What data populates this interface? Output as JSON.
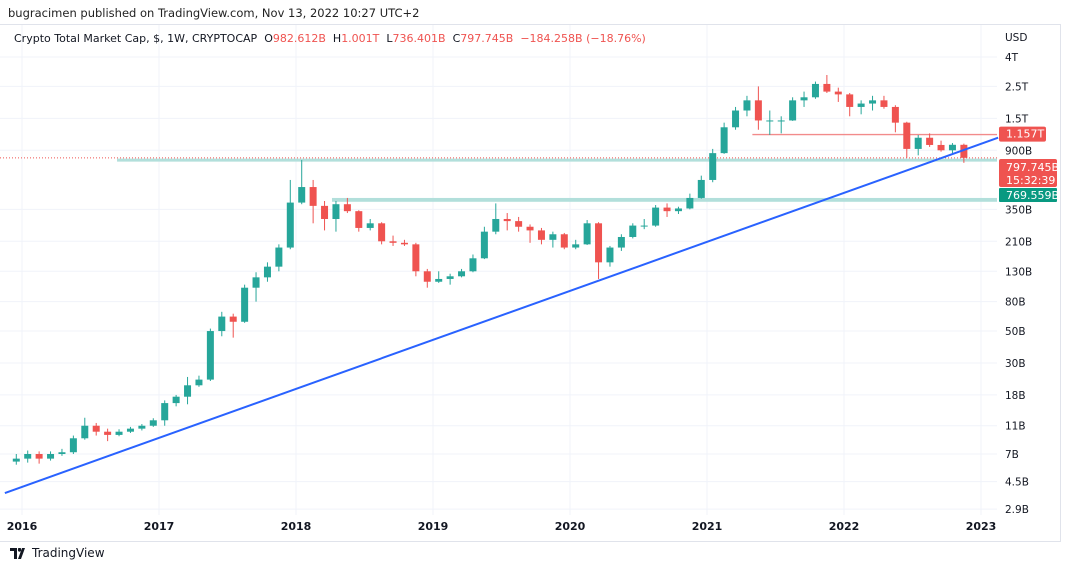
{
  "publisher_line": "bugracimen published on TradingView.com, Nov 13, 2022 10:27 UTC+2",
  "legend": {
    "symbol": "Crypto Total Market Cap, $, 1W, CRYPTOCAP",
    "o_label": "O",
    "o": "982.612B",
    "h_label": "H",
    "h": "1.001T",
    "l_label": "L",
    "l": "736.401B",
    "c_label": "C",
    "c": "797.745B",
    "change": "−184.258B (−18.76%)"
  },
  "logo_text": "TradingView",
  "colors": {
    "up": "#26a69a",
    "down": "#ef5350",
    "trendline": "#2962ff",
    "band": "#b2dfdb",
    "grid": "#f0f3fa"
  },
  "chart_data": {
    "type": "candlestick",
    "scale": "log",
    "currency": "USD",
    "unit_note": "values in billions USD",
    "ylim": [
      2.9,
      4000
    ],
    "y_ticks": [
      {
        "v": 4000,
        "label": "4T"
      },
      {
        "v": 2500,
        "label": "2.5T"
      },
      {
        "v": 1500,
        "label": "1.5T"
      },
      {
        "v": 900,
        "label": "900B"
      },
      {
        "v": 350,
        "label": "350B"
      },
      {
        "v": 210,
        "label": "210B"
      },
      {
        "v": 130,
        "label": "130B"
      },
      {
        "v": 80,
        "label": "80B"
      },
      {
        "v": 50,
        "label": "50B"
      },
      {
        "v": 30,
        "label": "30B"
      },
      {
        "v": 18,
        "label": "18B"
      },
      {
        "v": 11,
        "label": "11B"
      },
      {
        "v": 7,
        "label": "7B"
      },
      {
        "v": 4.5,
        "label": "4.5B"
      },
      {
        "v": 2.9,
        "label": "2.9B"
      }
    ],
    "x_ticks": [
      "2016",
      "2017",
      "2018",
      "2019",
      "2020",
      "2021",
      "2022",
      "2023"
    ],
    "xlim": [
      "2015-11",
      "2023-02"
    ],
    "grid": true,
    "candles": [
      [
        "2015-12",
        6.2,
        7.0,
        5.9,
        6.5
      ],
      [
        "2016-01",
        6.5,
        7.4,
        6.1,
        7.0
      ],
      [
        "2016-02",
        7.0,
        7.3,
        6.0,
        6.5
      ],
      [
        "2016-03",
        6.5,
        7.3,
        6.3,
        7.0
      ],
      [
        "2016-04",
        7.0,
        7.6,
        6.8,
        7.2
      ],
      [
        "2016-05",
        7.2,
        9.4,
        7.0,
        9.0
      ],
      [
        "2016-06",
        9.0,
        12.5,
        8.8,
        11.0
      ],
      [
        "2016-07",
        11.0,
        11.5,
        9.4,
        10.0
      ],
      [
        "2016-08",
        10.0,
        10.5,
        8.6,
        9.5
      ],
      [
        "2016-09",
        9.5,
        10.4,
        9.3,
        10.0
      ],
      [
        "2016-10",
        10.0,
        10.8,
        9.8,
        10.5
      ],
      [
        "2016-11",
        10.5,
        11.3,
        10.2,
        11.0
      ],
      [
        "2016-12",
        11.0,
        12.4,
        10.8,
        12.0
      ],
      [
        "2017-01",
        12.0,
        16.5,
        11.0,
        15.8
      ],
      [
        "2017-02",
        15.8,
        18.0,
        15.0,
        17.5
      ],
      [
        "2017-03",
        17.5,
        24.0,
        15.5,
        21.0
      ],
      [
        "2017-04",
        21.0,
        24.5,
        20.5,
        23.0
      ],
      [
        "2017-05",
        23.0,
        52.0,
        22.5,
        50.0
      ],
      [
        "2017-06",
        50.0,
        68.0,
        46.0,
        63.0
      ],
      [
        "2017-07",
        63.0,
        66.0,
        45.0,
        58.0
      ],
      [
        "2017-08",
        58.0,
        105.0,
        57.0,
        100.0
      ],
      [
        "2017-09",
        100.0,
        128.0,
        80.0,
        118.0
      ],
      [
        "2017-10",
        118.0,
        150.0,
        110.0,
        140.0
      ],
      [
        "2017-11",
        140.0,
        200.0,
        130.0,
        190.0
      ],
      [
        "2017-12",
        190.0,
        560.0,
        185.0,
        390.0
      ],
      [
        "2018-01",
        390.0,
        770.0,
        380.0,
        500.0
      ],
      [
        "2018-02",
        500.0,
        560.0,
        280.0,
        370.0
      ],
      [
        "2018-03",
        370.0,
        400.0,
        250.0,
        300.0
      ],
      [
        "2018-04",
        300.0,
        400.0,
        245.0,
        380.0
      ],
      [
        "2018-05",
        380.0,
        420.0,
        330.0,
        340.0
      ],
      [
        "2018-06",
        340.0,
        345.0,
        245.0,
        260.0
      ],
      [
        "2018-07",
        260.0,
        300.0,
        250.0,
        280.0
      ],
      [
        "2018-08",
        280.0,
        285.0,
        200.0,
        210.0
      ],
      [
        "2018-09",
        210.0,
        230.0,
        195.0,
        205.0
      ],
      [
        "2018-10",
        205.0,
        215.0,
        195.0,
        200.0
      ],
      [
        "2018-11",
        200.0,
        205.0,
        120.0,
        130.0
      ],
      [
        "2018-12",
        130.0,
        135.0,
        100.0,
        110.0
      ],
      [
        "2019-01",
        110.0,
        130.0,
        108.0,
        115.0
      ],
      [
        "2019-02",
        115.0,
        125.0,
        105.0,
        120.0
      ],
      [
        "2019-03",
        120.0,
        135.0,
        118.0,
        130.0
      ],
      [
        "2019-04",
        130.0,
        170.0,
        128.0,
        160.0
      ],
      [
        "2019-05",
        160.0,
        265.0,
        158.0,
        245.0
      ],
      [
        "2019-06",
        245.0,
        385.0,
        235.0,
        300.0
      ],
      [
        "2019-07",
        300.0,
        330.0,
        250.0,
        290.0
      ],
      [
        "2019-08",
        290.0,
        310.0,
        245.0,
        265.0
      ],
      [
        "2019-09",
        265.0,
        275.0,
        205.0,
        250.0
      ],
      [
        "2019-10",
        250.0,
        260.0,
        200.0,
        215.0
      ],
      [
        "2019-11",
        215.0,
        245.0,
        190.0,
        235.0
      ],
      [
        "2019-12",
        235.0,
        240.0,
        185.0,
        190.0
      ],
      [
        "2020-01",
        190.0,
        215.0,
        185.0,
        200.0
      ],
      [
        "2020-02",
        200.0,
        295.0,
        198.0,
        280.0
      ],
      [
        "2020-03",
        280.0,
        285.0,
        115.0,
        150.0
      ],
      [
        "2020-04",
        150.0,
        195.0,
        140.0,
        190.0
      ],
      [
        "2020-05",
        190.0,
        235.0,
        180.0,
        225.0
      ],
      [
        "2020-06",
        225.0,
        280.0,
        220.0,
        270.0
      ],
      [
        "2020-07",
        270.0,
        300.0,
        255.0,
        270.0
      ],
      [
        "2020-08",
        270.0,
        375.0,
        265.0,
        360.0
      ],
      [
        "2020-09",
        360.0,
        385.0,
        310.0,
        340.0
      ],
      [
        "2020-10",
        340.0,
        365.0,
        325.0,
        355.0
      ],
      [
        "2020-11",
        355.0,
        450.0,
        350.0,
        420.0
      ],
      [
        "2020-12",
        420.0,
        600.0,
        415.0,
        560.0
      ],
      [
        "2021-01",
        560.0,
        920.0,
        540.0,
        860.0
      ],
      [
        "2021-02",
        860.0,
        1400.0,
        850.0,
        1300.0
      ],
      [
        "2021-03",
        1300.0,
        1800.0,
        1250.0,
        1700.0
      ],
      [
        "2021-04",
        1700.0,
        2150.0,
        1550.0,
        2000.0
      ],
      [
        "2021-05",
        2000.0,
        2500.0,
        1250.0,
        1450.0
      ],
      [
        "2021-06",
        1450.0,
        1700.0,
        1150.0,
        1450.0
      ],
      [
        "2021-07",
        1450.0,
        1550.0,
        1180.0,
        1450.0
      ],
      [
        "2021-08",
        1450.0,
        2100.0,
        1440.0,
        2000.0
      ],
      [
        "2021-09",
        2000.0,
        2300.0,
        1800.0,
        2100.0
      ],
      [
        "2021-10",
        2100.0,
        2700.0,
        2050.0,
        2600.0
      ],
      [
        "2021-11",
        2600.0,
        3000.0,
        2250.0,
        2300.0
      ],
      [
        "2021-12",
        2300.0,
        2450.0,
        1950.0,
        2200.0
      ],
      [
        "2022-01",
        2200.0,
        2250.0,
        1550.0,
        1800.0
      ],
      [
        "2022-02",
        1800.0,
        2000.0,
        1600.0,
        1900.0
      ],
      [
        "2022-03",
        1900.0,
        2150.0,
        1700.0,
        2000.0
      ],
      [
        "2022-04",
        2000.0,
        2150.0,
        1750.0,
        1800.0
      ],
      [
        "2022-05",
        1800.0,
        1850.0,
        1200.0,
        1400.0
      ],
      [
        "2022-06",
        1400.0,
        1420.0,
        800.0,
        920.0
      ],
      [
        "2022-07",
        920.0,
        1150.0,
        830.0,
        1100.0
      ],
      [
        "2022-08",
        1100.0,
        1180.0,
        950.0,
        980.0
      ],
      [
        "2022-09",
        980.0,
        1050.0,
        880.0,
        900.0
      ],
      [
        "2022-10",
        900.0,
        1010.0,
        860.0,
        982.612
      ],
      [
        "2022-11",
        982.612,
        1001.0,
        736.401,
        797.745
      ]
    ],
    "drawings": {
      "trendline": {
        "from": [
          "2015-11",
          3.75
        ],
        "to": [
          "2023-02",
          1100
        ]
      },
      "support_band": {
        "from": "2018-04",
        "low": 395,
        "high": 420
      },
      "green_level": {
        "from": "2016-09",
        "value": 769.559
      },
      "red_level": {
        "from": "2021-05",
        "value": 1157
      }
    },
    "price_labels": {
      "resistance": "1.157T",
      "last_price": "797.745B",
      "countdown": "15:32:39",
      "support": "769.559B"
    }
  }
}
